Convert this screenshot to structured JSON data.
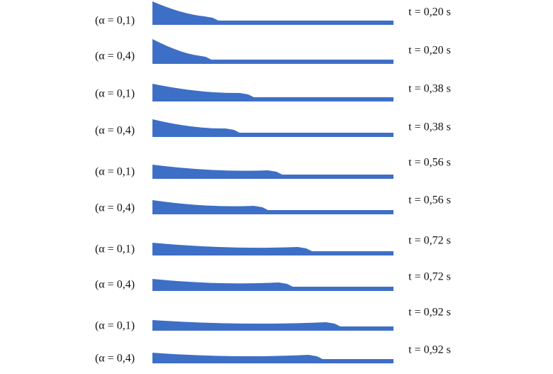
{
  "rows": [
    {
      "alpha": "(α = 0,1)",
      "time": "t = 0,20 s"
    },
    {
      "alpha": "(α = 0,4)",
      "time": "t = 0,20 s"
    },
    {
      "alpha": "(α = 0,1)",
      "time": "t = 0,38 s"
    },
    {
      "alpha": "(α = 0,4)",
      "time": "t = 0,38 s"
    },
    {
      "alpha": "(α = 0,1)",
      "time": "t = 0,56 s"
    },
    {
      "alpha": "(α = 0,4)",
      "time": "t = 0,56 s"
    },
    {
      "alpha": "(α = 0,1)",
      "time": "t = 0,72 s"
    },
    {
      "alpha": "(α = 0,4)",
      "time": "t = 0,72 s"
    },
    {
      "alpha": "(α = 0,1)",
      "time": "t = 0,92 s"
    },
    {
      "alpha": "(α = 0,4)",
      "time": "t = 0,92 s"
    }
  ]
}
